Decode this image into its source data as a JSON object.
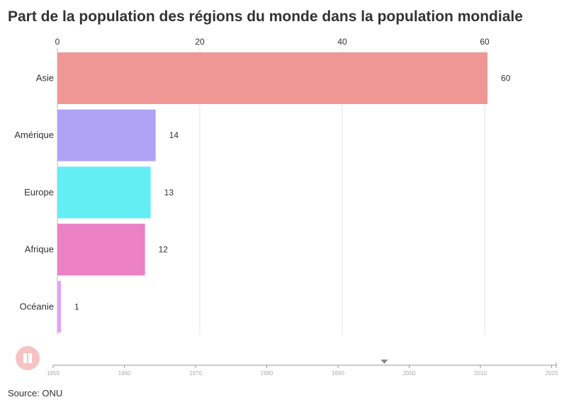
{
  "title": "Part de la population des régions du monde dans la population mondiale",
  "source": "Source: ONU",
  "chart_data": {
    "type": "bar",
    "orientation": "horizontal",
    "title": "Part de la population des régions du monde dans la population mondiale",
    "xlim": [
      0,
      70
    ],
    "x_ticks": [
      0,
      20,
      40,
      60
    ],
    "grid": true,
    "categories": [
      "Asie",
      "Amérique",
      "Europe",
      "Afrique",
      "Océanie"
    ],
    "values": [
      60.4,
      13.8,
      13.1,
      12.3,
      0.5
    ],
    "value_labels": [
      "60",
      "14",
      "13",
      "12",
      "1"
    ],
    "colors": [
      "#ee9794",
      "#b0a3f5",
      "#63eef4",
      "#ec80c4",
      "#e3a4f4"
    ],
    "legend": "none"
  },
  "timeline": {
    "ticks": [
      "1950",
      "1960",
      "1970",
      "1980",
      "1990",
      "2000",
      "2010",
      "2020"
    ],
    "range": [
      1950,
      2020
    ],
    "current_year": 1996.5,
    "play_state": "paused",
    "play_button_color": "#f6c3c3"
  }
}
